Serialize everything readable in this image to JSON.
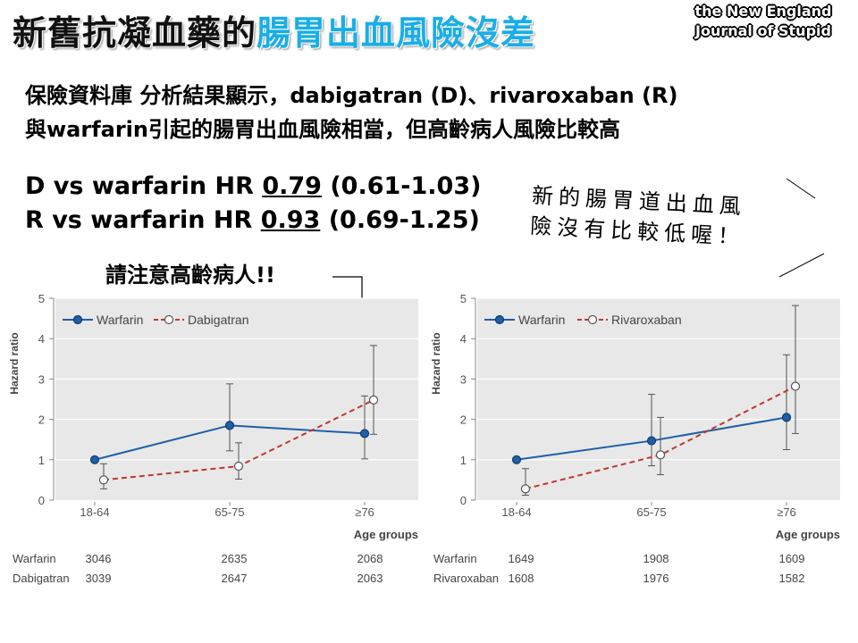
{
  "title_part1": "新舊抗凝血藥的",
  "title_part2": "腸胃出血風險沒差",
  "logo_line1": "the New England",
  "logo_line2": "Journal of Stupid",
  "summary_line1": "保險資料庫 分析結果顯示，dabigatran (D)、rivaroxaban (R)",
  "summary_line2": "與warfarin引起的腸胃出血風險相當，但高齡病人風險比較高",
  "hr_lines": [
    {
      "prefix": "D vs warfarin HR ",
      "value": "0.79",
      "ci": " (0.61-1.03)"
    },
    {
      "prefix": "R vs warfarin HR ",
      "value": "0.93",
      "ci": " (0.69-1.25)"
    }
  ],
  "note_line1": "新的腸胃道出血風",
  "note_line2": "險沒有比較低喔！",
  "callout": "請注意高齡病人!!",
  "colors": {
    "title_accent": "#19aee6",
    "warfarin": "#1f5fa8",
    "noac": "#c0392b",
    "plot_bg": "#e8e8e8"
  },
  "chart_data": [
    {
      "type": "line",
      "ylabel": "Hazard ratio",
      "xlabel": "Age groups",
      "ylim": [
        0,
        5
      ],
      "yticks": [
        "0",
        "1",
        "2",
        "3",
        "4",
        "5"
      ],
      "categories": [
        "18-64",
        "65-75",
        "≥76"
      ],
      "legend_position": "top-left",
      "series": [
        {
          "name": "Warfarin",
          "marker": "filled",
          "style": "solid",
          "values": [
            1.0,
            1.85,
            1.65
          ],
          "ci_low": [
            null,
            1.22,
            1.02
          ],
          "ci_high": [
            null,
            2.88,
            2.58
          ]
        },
        {
          "name": "Dabigatran",
          "marker": "open",
          "style": "dashed",
          "values": [
            0.5,
            0.84,
            2.48
          ],
          "ci_low": [
            0.28,
            0.52,
            1.63
          ],
          "ci_high": [
            0.9,
            1.42,
            3.83
          ]
        }
      ],
      "table": {
        "rows": [
          {
            "label": "Warfarin",
            "values": [
              "3046",
              "2635",
              "2068"
            ]
          },
          {
            "label": "Dabigatran",
            "values": [
              "3039",
              "2647",
              "2063"
            ]
          }
        ]
      }
    },
    {
      "type": "line",
      "ylabel": "Hazard ratio",
      "xlabel": "Age groups",
      "ylim": [
        0,
        5
      ],
      "yticks": [
        "0",
        "1",
        "2",
        "3",
        "4",
        "5"
      ],
      "categories": [
        "18-64",
        "65-75",
        "≥76"
      ],
      "legend_position": "top-left",
      "series": [
        {
          "name": "Warfarin",
          "marker": "filled",
          "style": "solid",
          "values": [
            1.0,
            1.47,
            2.05
          ],
          "ci_low": [
            null,
            0.85,
            1.25
          ],
          "ci_high": [
            null,
            2.62,
            3.6
          ]
        },
        {
          "name": "Rivaroxaban",
          "marker": "open",
          "style": "dashed",
          "values": [
            0.28,
            1.12,
            2.82
          ],
          "ci_low": [
            0.12,
            0.63,
            1.65
          ],
          "ci_high": [
            0.78,
            2.05,
            4.82
          ]
        }
      ],
      "table": {
        "rows": [
          {
            "label": "Warfarin",
            "values": [
              "1649",
              "1908",
              "1609"
            ]
          },
          {
            "label": "Rivaroxaban",
            "values": [
              "1608",
              "1976",
              "1582"
            ]
          }
        ]
      }
    }
  ]
}
